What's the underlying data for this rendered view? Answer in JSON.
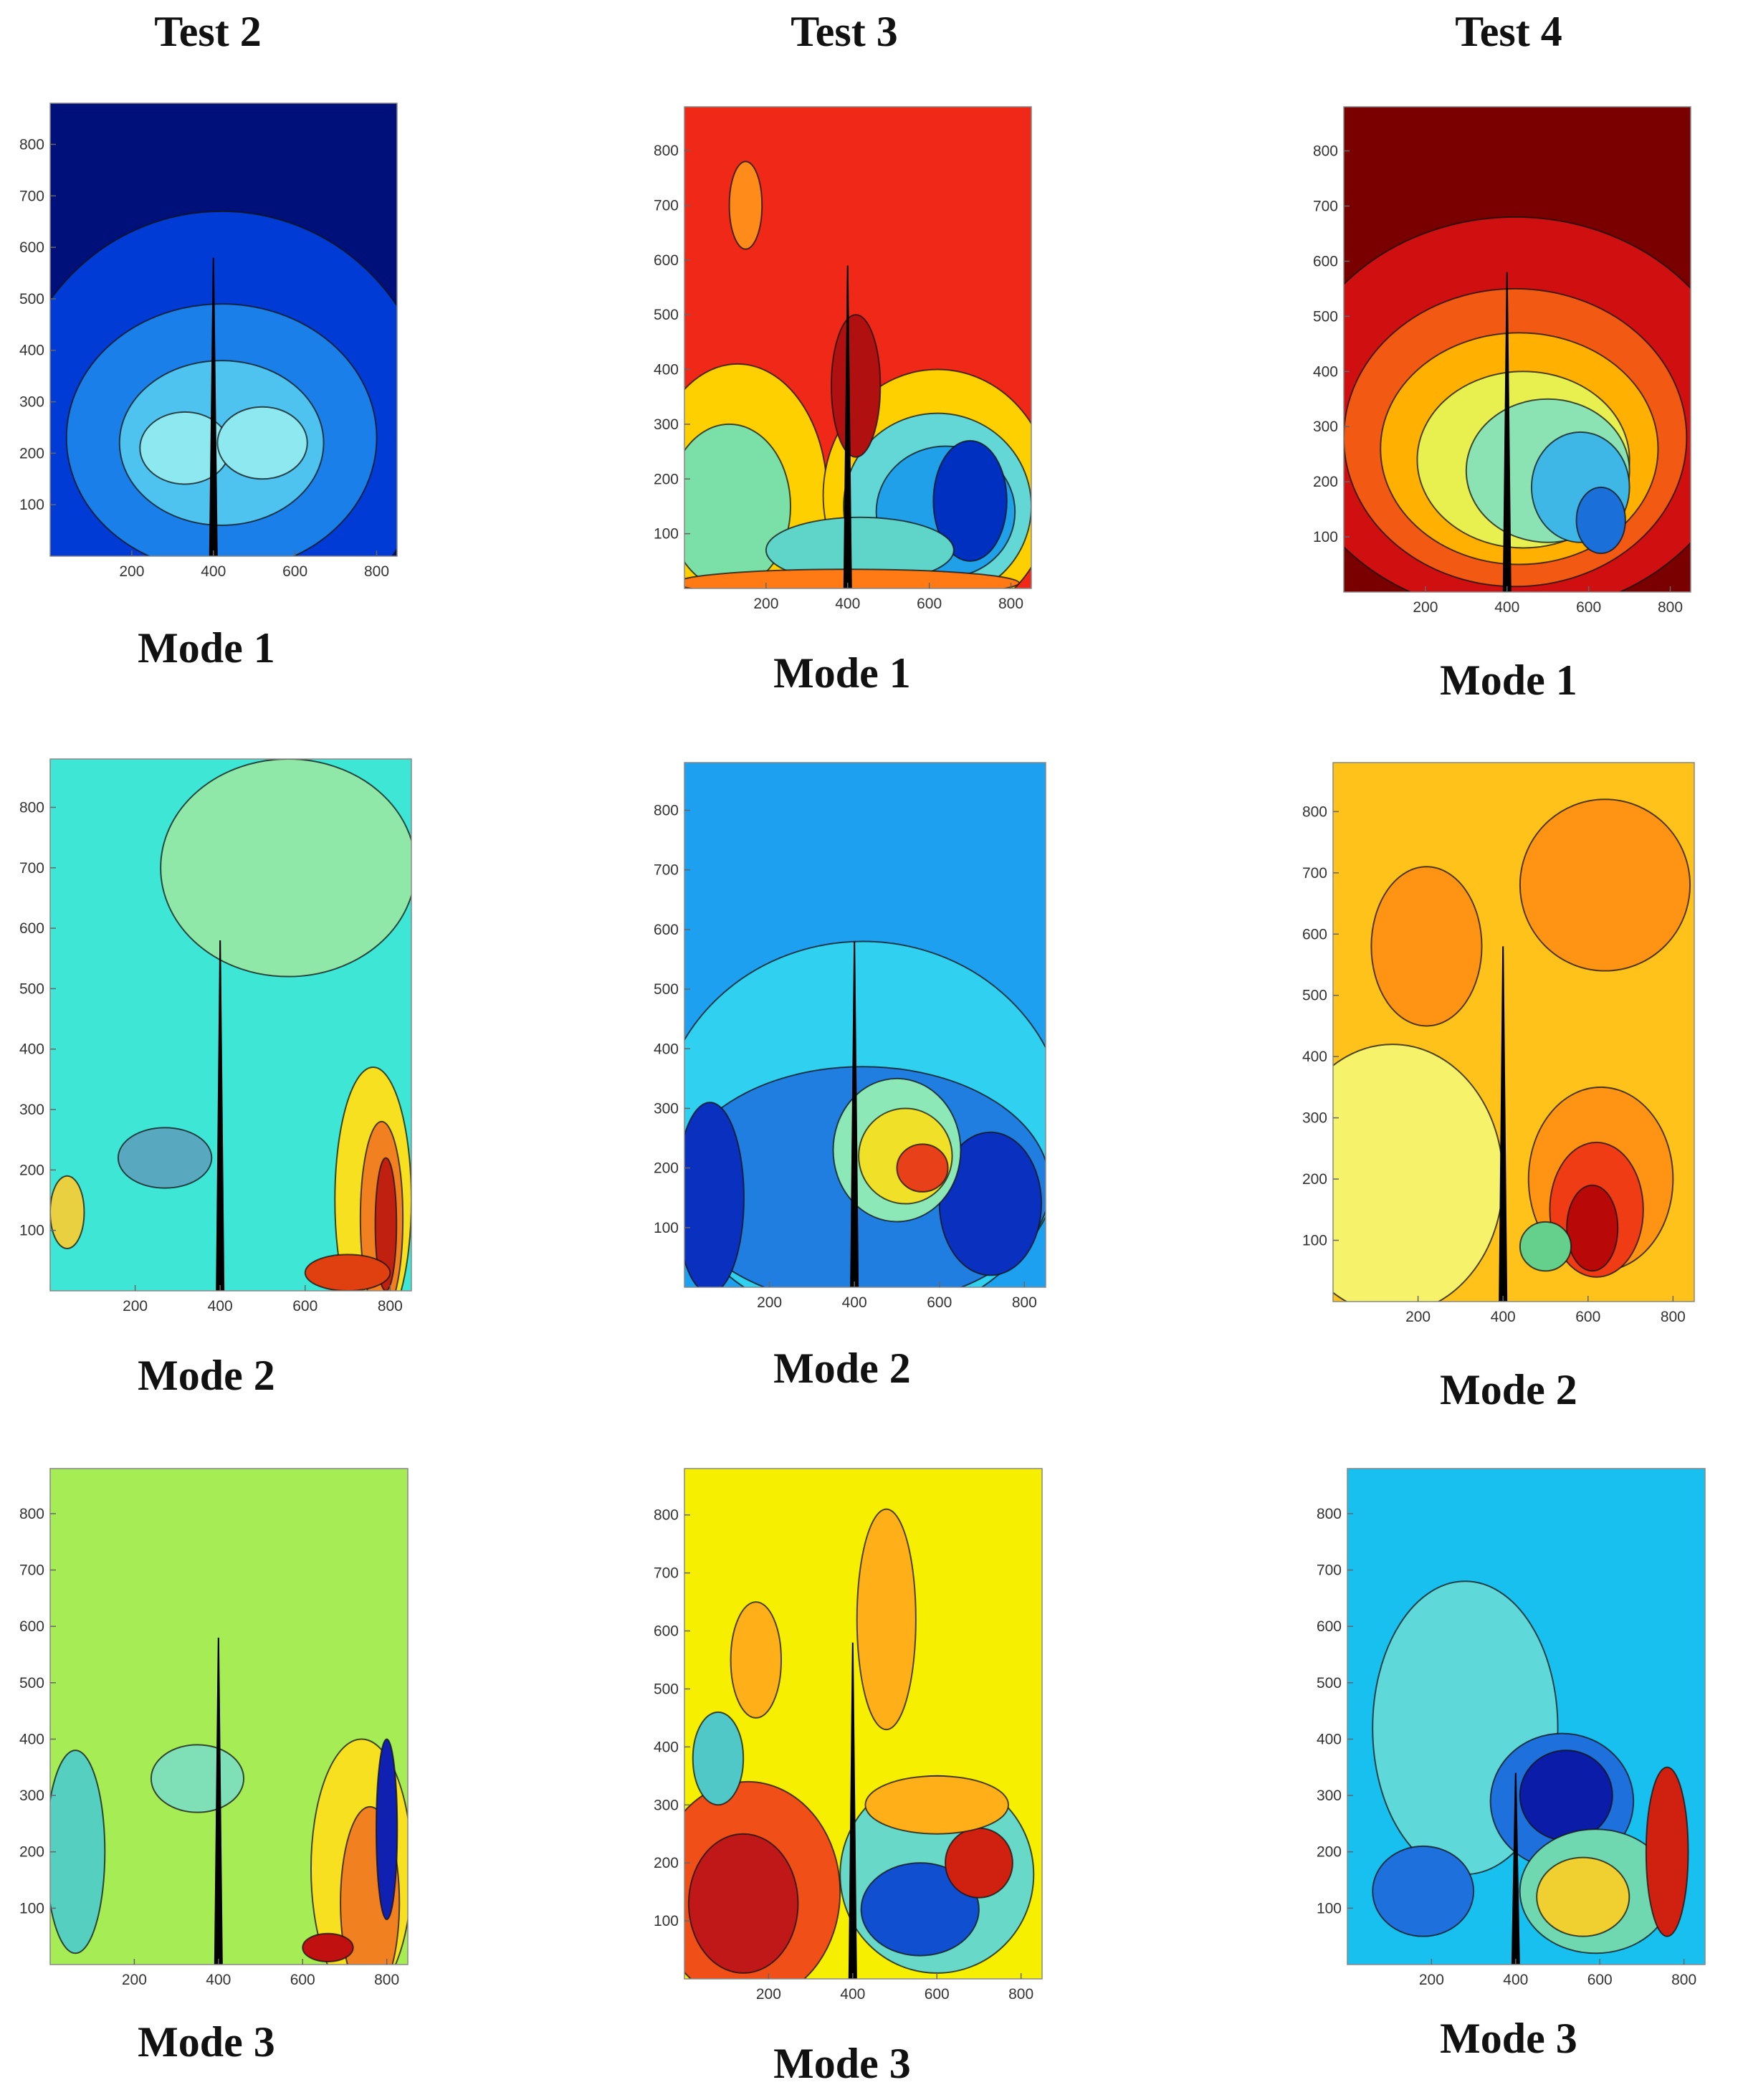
{
  "columns": [
    "Test 2",
    "Test 3",
    "Test 4"
  ],
  "chart_data": [
    {
      "type": "heatmap",
      "test": "Test 2",
      "mode_label": "Mode 1",
      "colormap": "jet",
      "xlim": [
        0,
        850
      ],
      "ylim": [
        0,
        880
      ],
      "xticks": [
        200,
        400,
        600,
        800
      ],
      "yticks": [
        100,
        200,
        300,
        400,
        500,
        600,
        700,
        800
      ],
      "background": "#00107a",
      "blobs": [
        {
          "x": 420,
          "y": 250,
          "rx": 520,
          "ry": 420,
          "color": "#003bd6"
        },
        {
          "x": 420,
          "y": 230,
          "rx": 380,
          "ry": 260,
          "color": "#1a7fe8"
        },
        {
          "x": 420,
          "y": 220,
          "rx": 250,
          "ry": 160,
          "color": "#4fc3ef"
        },
        {
          "x": 330,
          "y": 210,
          "rx": 110,
          "ry": 70,
          "color": "#8ee8f0"
        },
        {
          "x": 520,
          "y": 220,
          "rx": 110,
          "ry": 70,
          "color": "#8ee8f0"
        }
      ],
      "crack": {
        "x": 400,
        "y_top": 580
      }
    },
    {
      "type": "heatmap",
      "test": "Test 3",
      "mode_label": "Mode 1",
      "colormap": "jet",
      "xlim": [
        0,
        850
      ],
      "ylim": [
        0,
        880
      ],
      "xticks": [
        200,
        400,
        600,
        800
      ],
      "yticks": [
        100,
        200,
        300,
        400,
        500,
        600,
        700,
        800
      ],
      "background": "#f02818",
      "blobs": [
        {
          "x": 130,
          "y": 170,
          "rx": 220,
          "ry": 240,
          "color": "#ffd000"
        },
        {
          "x": 620,
          "y": 170,
          "rx": 280,
          "ry": 230,
          "color": "#ffd000"
        },
        {
          "x": 110,
          "y": 150,
          "rx": 150,
          "ry": 150,
          "color": "#7be0a8"
        },
        {
          "x": 620,
          "y": 150,
          "rx": 230,
          "ry": 170,
          "color": "#63d7d5"
        },
        {
          "x": 640,
          "y": 140,
          "rx": 170,
          "ry": 120,
          "color": "#1fa0e8"
        },
        {
          "x": 700,
          "y": 160,
          "rx": 90,
          "ry": 110,
          "color": "#0030c0"
        },
        {
          "x": 430,
          "y": 70,
          "rx": 230,
          "ry": 60,
          "color": "#5fd4c9"
        },
        {
          "x": 150,
          "y": 700,
          "rx": 40,
          "ry": 80,
          "color": "#ff8c1a"
        },
        {
          "x": 420,
          "y": 370,
          "rx": 60,
          "ry": 130,
          "color": "#b01010"
        },
        {
          "x": 400,
          "y": 10,
          "rx": 420,
          "ry": 25,
          "color": "#ff7a14"
        }
      ],
      "crack": {
        "x": 400,
        "y_top": 590
      }
    },
    {
      "type": "heatmap",
      "test": "Test 4",
      "mode_label": "Mode 1",
      "colormap": "jet",
      "xlim": [
        0,
        850
      ],
      "ylim": [
        0,
        880
      ],
      "xticks": [
        200,
        400,
        600,
        800
      ],
      "yticks": [
        100,
        200,
        300,
        400,
        500,
        600,
        700,
        800
      ],
      "background": "#7a0000",
      "blobs": [
        {
          "x": 420,
          "y": 320,
          "rx": 560,
          "ry": 360,
          "color": "#d01010"
        },
        {
          "x": 420,
          "y": 280,
          "rx": 420,
          "ry": 270,
          "color": "#f25a14"
        },
        {
          "x": 430,
          "y": 260,
          "rx": 340,
          "ry": 210,
          "color": "#ffb000"
        },
        {
          "x": 440,
          "y": 240,
          "rx": 260,
          "ry": 160,
          "color": "#e8f050"
        },
        {
          "x": 500,
          "y": 220,
          "rx": 200,
          "ry": 130,
          "color": "#8be2b3"
        },
        {
          "x": 580,
          "y": 190,
          "rx": 120,
          "ry": 100,
          "color": "#3fb7e6"
        },
        {
          "x": 630,
          "y": 130,
          "rx": 60,
          "ry": 60,
          "color": "#1b6fd8"
        }
      ],
      "crack": {
        "x": 400,
        "y_top": 580
      }
    },
    {
      "type": "heatmap",
      "test": "Test 2",
      "mode_label": "Mode 2",
      "colormap": "jet",
      "xlim": [
        0,
        850
      ],
      "ylim": [
        0,
        880
      ],
      "xticks": [
        200,
        400,
        600,
        800
      ],
      "yticks": [
        100,
        200,
        300,
        400,
        500,
        600,
        700,
        800
      ],
      "background": "#3ee6d5",
      "blobs": [
        {
          "x": 560,
          "y": 700,
          "rx": 300,
          "ry": 180,
          "color": "#8fe7a8"
        },
        {
          "x": 760,
          "y": 150,
          "rx": 90,
          "ry": 220,
          "color": "#f6e020"
        },
        {
          "x": 780,
          "y": 120,
          "rx": 50,
          "ry": 160,
          "color": "#f08020"
        },
        {
          "x": 790,
          "y": 110,
          "rx": 25,
          "ry": 110,
          "color": "#c02010"
        },
        {
          "x": 700,
          "y": 30,
          "rx": 100,
          "ry": 30,
          "color": "#e04010"
        },
        {
          "x": 40,
          "y": 130,
          "rx": 40,
          "ry": 60,
          "color": "#e8d040"
        },
        {
          "x": 270,
          "y": 220,
          "rx": 110,
          "ry": 50,
          "color": "#58a8c0"
        }
      ],
      "crack": {
        "x": 400,
        "y_top": 580
      }
    },
    {
      "type": "heatmap",
      "test": "Test 3",
      "mode_label": "Mode 2",
      "colormap": "jet",
      "xlim": [
        0,
        850
      ],
      "ylim": [
        0,
        880
      ],
      "xticks": [
        200,
        400,
        600,
        800
      ],
      "yticks": [
        100,
        200,
        300,
        400,
        500,
        600,
        700,
        800
      ],
      "background": "#1ea0f0",
      "blobs": [
        {
          "x": 420,
          "y": 260,
          "rx": 480,
          "ry": 320,
          "color": "#2fd0f0"
        },
        {
          "x": 420,
          "y": 170,
          "rx": 440,
          "ry": 200,
          "color": "#1f7ee0"
        },
        {
          "x": 60,
          "y": 150,
          "rx": 80,
          "ry": 160,
          "color": "#0a30c0"
        },
        {
          "x": 720,
          "y": 140,
          "rx": 120,
          "ry": 120,
          "color": "#0a30c0"
        },
        {
          "x": 500,
          "y": 230,
          "rx": 150,
          "ry": 120,
          "color": "#8de8b8"
        },
        {
          "x": 520,
          "y": 220,
          "rx": 110,
          "ry": 80,
          "color": "#f0e028"
        },
        {
          "x": 560,
          "y": 200,
          "rx": 60,
          "ry": 40,
          "color": "#e84018"
        }
      ],
      "crack": {
        "x": 400,
        "y_top": 580
      }
    },
    {
      "type": "heatmap",
      "test": "Test 4",
      "mode_label": "Mode 2",
      "colormap": "jet",
      "xlim": [
        0,
        850
      ],
      "ylim": [
        0,
        880
      ],
      "xticks": [
        200,
        400,
        600,
        800
      ],
      "yticks": [
        100,
        200,
        300,
        400,
        500,
        600,
        700,
        800
      ],
      "background": "#ffc21a",
      "blobs": [
        {
          "x": 220,
          "y": 580,
          "rx": 130,
          "ry": 130,
          "color": "#ff9414"
        },
        {
          "x": 640,
          "y": 680,
          "rx": 200,
          "ry": 140,
          "color": "#ff9414"
        },
        {
          "x": 140,
          "y": 200,
          "rx": 260,
          "ry": 220,
          "color": "#f6f26a"
        },
        {
          "x": 630,
          "y": 200,
          "rx": 170,
          "ry": 150,
          "color": "#ff9414"
        },
        {
          "x": 620,
          "y": 150,
          "rx": 110,
          "ry": 110,
          "color": "#f03c14"
        },
        {
          "x": 610,
          "y": 120,
          "rx": 60,
          "ry": 70,
          "color": "#b80808"
        },
        {
          "x": 500,
          "y": 90,
          "rx": 60,
          "ry": 40,
          "color": "#64d08c"
        }
      ],
      "crack": {
        "x": 400,
        "y_top": 580
      }
    },
    {
      "type": "heatmap",
      "test": "Test 2",
      "mode_label": "Mode 3",
      "colormap": "jet",
      "xlim": [
        0,
        850
      ],
      "ylim": [
        0,
        880
      ],
      "xticks": [
        200,
        400,
        600,
        800
      ],
      "yticks": [
        100,
        200,
        300,
        400,
        500,
        600,
        700,
        800
      ],
      "background": "#a6ec55",
      "blobs": [
        {
          "x": 740,
          "y": 170,
          "rx": 120,
          "ry": 230,
          "color": "#f6e020"
        },
        {
          "x": 760,
          "y": 110,
          "rx": 70,
          "ry": 170,
          "color": "#f08020"
        },
        {
          "x": 800,
          "y": 240,
          "rx": 25,
          "ry": 160,
          "color": "#1020b0"
        },
        {
          "x": 660,
          "y": 30,
          "rx": 60,
          "ry": 25,
          "color": "#c01010"
        },
        {
          "x": 60,
          "y": 200,
          "rx": 70,
          "ry": 180,
          "color": "#55d0c0"
        },
        {
          "x": 350,
          "y": 330,
          "rx": 110,
          "ry": 60,
          "color": "#7fe0b8"
        }
      ],
      "crack": {
        "x": 400,
        "y_top": 580
      }
    },
    {
      "type": "heatmap",
      "test": "Test 3",
      "mode_label": "Mode 3",
      "colormap": "jet",
      "xlim": [
        0,
        850
      ],
      "ylim": [
        0,
        880
      ],
      "xticks": [
        200,
        400,
        600,
        800
      ],
      "yticks": [
        100,
        200,
        300,
        400,
        500,
        600,
        700,
        800
      ],
      "background": "#f6f000",
      "blobs": [
        {
          "x": 150,
          "y": 150,
          "rx": 220,
          "ry": 190,
          "color": "#f05018"
        },
        {
          "x": 140,
          "y": 130,
          "rx": 130,
          "ry": 120,
          "color": "#c01818"
        },
        {
          "x": 600,
          "y": 180,
          "rx": 230,
          "ry": 170,
          "color": "#68d8c8"
        },
        {
          "x": 560,
          "y": 120,
          "rx": 140,
          "ry": 80,
          "color": "#1050d0"
        },
        {
          "x": 700,
          "y": 200,
          "rx": 80,
          "ry": 60,
          "color": "#d02010"
        },
        {
          "x": 480,
          "y": 620,
          "rx": 70,
          "ry": 190,
          "color": "#ffb018"
        },
        {
          "x": 170,
          "y": 550,
          "rx": 60,
          "ry": 100,
          "color": "#ffb018"
        },
        {
          "x": 600,
          "y": 300,
          "rx": 170,
          "ry": 50,
          "color": "#ffb018"
        },
        {
          "x": 80,
          "y": 380,
          "rx": 60,
          "ry": 80,
          "color": "#50c8c8"
        }
      ],
      "crack": {
        "x": 400,
        "y_top": 580
      }
    },
    {
      "type": "heatmap",
      "test": "Test 4",
      "mode_label": "Mode 3",
      "colormap": "jet",
      "xlim": [
        0,
        850
      ],
      "ylim": [
        0,
        880
      ],
      "xticks": [
        200,
        400,
        600,
        800
      ],
      "yticks": [
        100,
        200,
        300,
        400,
        500,
        600,
        700,
        800
      ],
      "background": "#18c0f0",
      "blobs": [
        {
          "x": 280,
          "y": 420,
          "rx": 220,
          "ry": 260,
          "color": "#5ed8d8"
        },
        {
          "x": 510,
          "y": 290,
          "rx": 170,
          "ry": 120,
          "color": "#1e70dc"
        },
        {
          "x": 520,
          "y": 300,
          "rx": 110,
          "ry": 80,
          "color": "#0a1ca8"
        },
        {
          "x": 590,
          "y": 130,
          "rx": 180,
          "ry": 110,
          "color": "#6fd8b0"
        },
        {
          "x": 560,
          "y": 120,
          "rx": 110,
          "ry": 70,
          "color": "#f0d030"
        },
        {
          "x": 760,
          "y": 200,
          "rx": 50,
          "ry": 150,
          "color": "#d02010"
        },
        {
          "x": 180,
          "y": 130,
          "rx": 120,
          "ry": 80,
          "color": "#1e70dc"
        }
      ],
      "crack": {
        "x": 400,
        "y_top": 340
      }
    }
  ]
}
